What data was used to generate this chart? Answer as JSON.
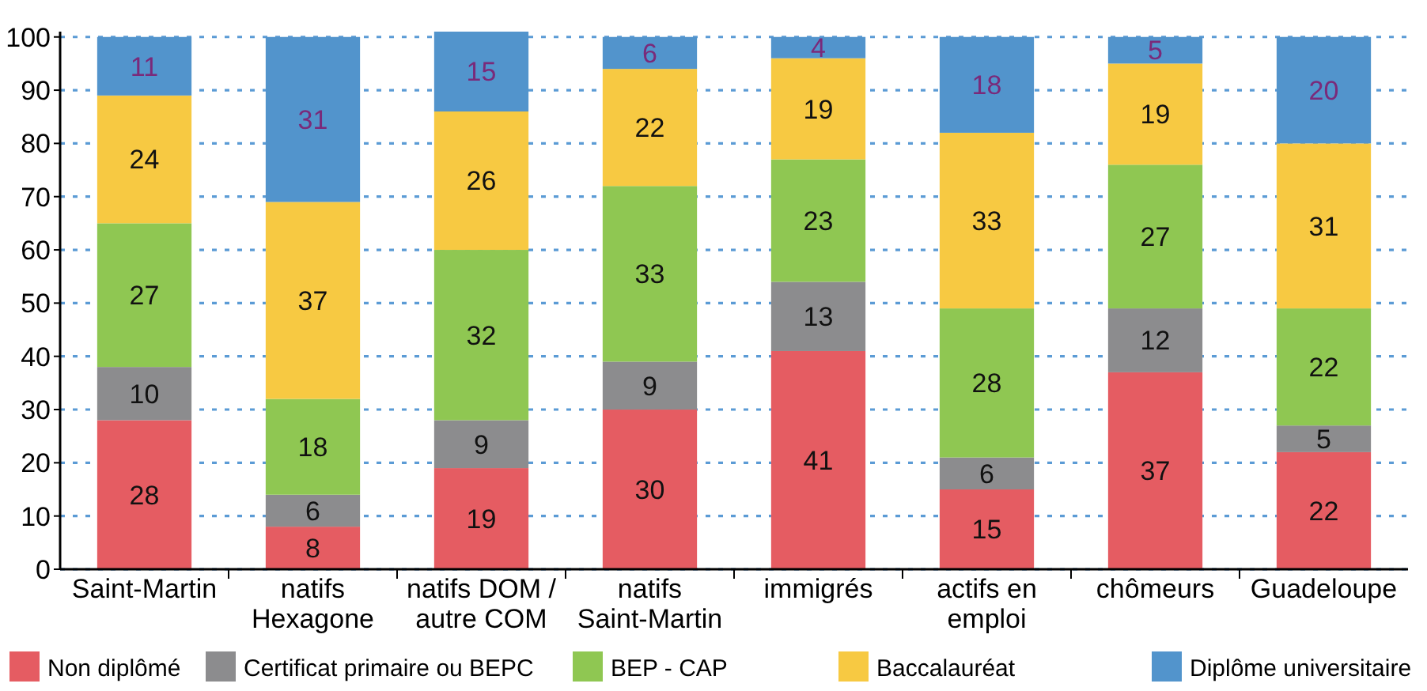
{
  "chart_data": {
    "type": "bar",
    "stacked": true,
    "data_labels": true,
    "grid": "y",
    "legend": "bottom",
    "categories": [
      "Saint-Martin",
      "natifs Hexagone",
      "natifs DOM / autre COM",
      "natifs Saint-Martin",
      "immigrés",
      "actifs en emploi",
      "chômeurs",
      "Guadeloupe"
    ],
    "ylim": [
      0,
      101
    ],
    "yticks": [
      0,
      10,
      20,
      30,
      40,
      50,
      60,
      70,
      80,
      90,
      100
    ],
    "series": [
      {
        "name": "Non diplômé",
        "color": "#e55c62",
        "values": [
          28,
          8,
          19,
          30,
          41,
          15,
          37,
          22
        ]
      },
      {
        "name": "Certificat primaire ou BEPC",
        "color": "#8c8c8e",
        "values": [
          10,
          6,
          9,
          9,
          13,
          6,
          12,
          5
        ]
      },
      {
        "name": "BEP - CAP",
        "color": "#8fc752",
        "values": [
          27,
          18,
          32,
          33,
          23,
          28,
          27,
          22
        ]
      },
      {
        "name": "Baccalauréat",
        "color": "#f7c942",
        "values": [
          24,
          37,
          26,
          22,
          19,
          33,
          19,
          31
        ]
      },
      {
        "name": "Diplôme universitaire",
        "color": "#5294cc",
        "values": [
          11,
          31,
          15,
          6,
          4,
          18,
          5,
          20
        ]
      }
    ]
  }
}
